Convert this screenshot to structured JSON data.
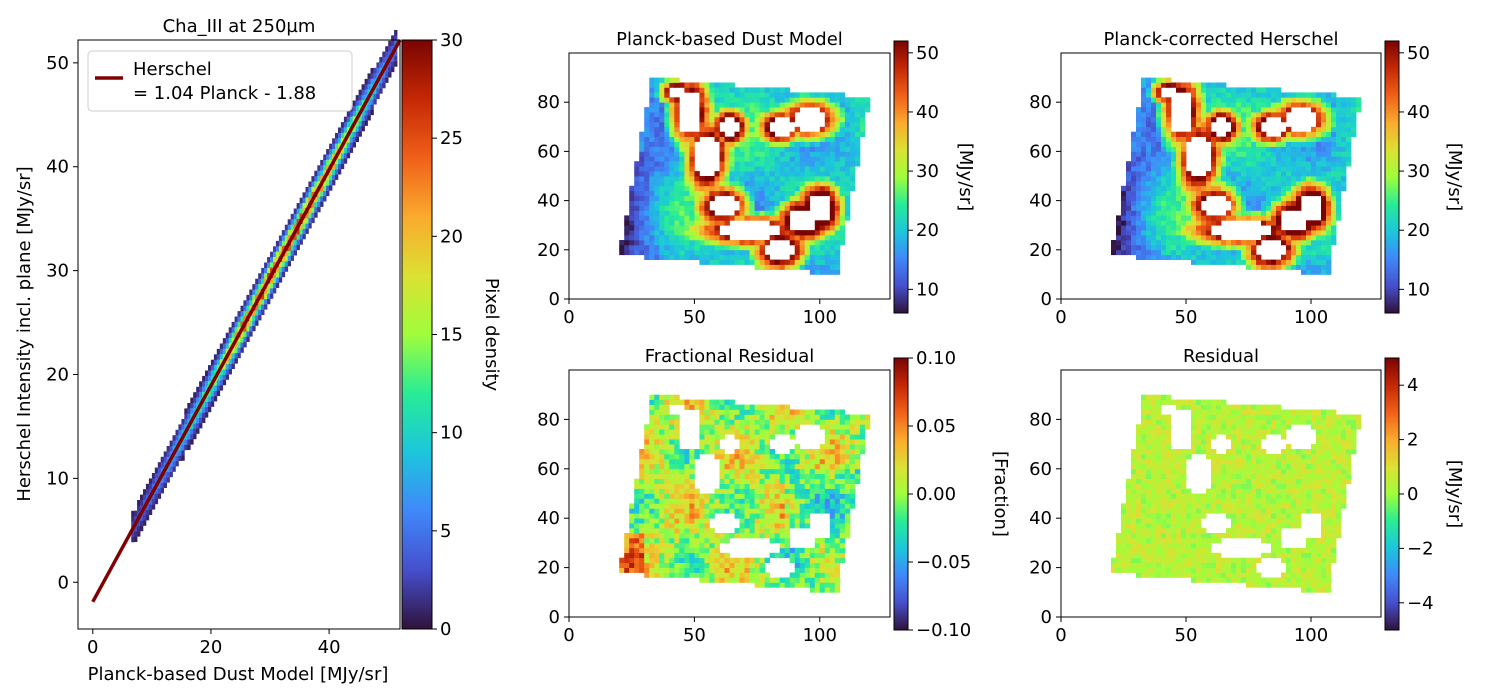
{
  "chart_data": [
    {
      "type": "heatmap",
      "panel": "density_scatter",
      "title": "Cha_III at 250µm",
      "xlabel": "Planck-based Dust Model [MJy/sr]",
      "ylabel": "Herschel Intensity incl. plane [MJy/sr]",
      "xlim": [
        -2.5,
        52
      ],
      "ylim": [
        -4.5,
        52.2
      ],
      "xticks": [
        0,
        20,
        40
      ],
      "yticks": [
        0,
        10,
        20,
        30,
        40,
        50
      ],
      "fit_line": {
        "slope": 1.04,
        "intercept": -1.88,
        "x_range": [
          0,
          52
        ]
      },
      "legend": {
        "position": "top-left",
        "entries": [
          "Herschel",
          "= 1.04 Planck - 1.88"
        ]
      },
      "colorbar": {
        "label": "Pixel density",
        "range": [
          0,
          30
        ],
        "ticks": [
          0,
          5,
          10,
          15,
          20,
          25,
          30
        ],
        "colormap": "turbo"
      },
      "density_profile": [
        {
          "x": 7,
          "peak_density": 3
        },
        {
          "x": 10,
          "peak_density": 5
        },
        {
          "x": 15,
          "peak_density": 9
        },
        {
          "x": 20,
          "peak_density": 14
        },
        {
          "x": 25,
          "peak_density": 24
        },
        {
          "x": 30,
          "peak_density": 27
        },
        {
          "x": 35,
          "peak_density": 26
        },
        {
          "x": 40,
          "peak_density": 22
        },
        {
          "x": 45,
          "peak_density": 14
        },
        {
          "x": 50,
          "peak_density": 5
        }
      ],
      "grid": false
    },
    {
      "type": "heatmap",
      "panel": "map",
      "title": "Planck-based Dust Model",
      "xticks": [
        0,
        50,
        100
      ],
      "yticks": [
        0,
        20,
        40,
        60,
        80
      ],
      "xlim": [
        0,
        128
      ],
      "ylim": [
        0,
        100
      ],
      "colorbar": {
        "label": "[MJy/sr]",
        "range": [
          6,
          52
        ],
        "ticks": [
          10,
          20,
          30,
          40,
          50
        ],
        "colormap": "turbo"
      },
      "grid": false
    },
    {
      "type": "heatmap",
      "panel": "map",
      "title": "Planck-corrected Herschel",
      "xticks": [
        0,
        50,
        100
      ],
      "yticks": [
        0,
        20,
        40,
        60,
        80
      ],
      "xlim": [
        0,
        128
      ],
      "ylim": [
        0,
        100
      ],
      "colorbar": {
        "label": "[MJy/sr]",
        "range": [
          6,
          52
        ],
        "ticks": [
          10,
          20,
          30,
          40,
          50
        ],
        "colormap": "turbo"
      },
      "grid": false
    },
    {
      "type": "heatmap",
      "panel": "map",
      "title": "Fractional Residual",
      "xticks": [
        0,
        50,
        100
      ],
      "yticks": [
        0,
        20,
        40,
        60,
        80
      ],
      "xlim": [
        0,
        128
      ],
      "ylim": [
        0,
        100
      ],
      "colorbar": {
        "label": "[Fraction]",
        "range": [
          -0.1,
          0.1
        ],
        "ticks": [
          -0.1,
          -0.05,
          0.0,
          0.05,
          0.1
        ],
        "tick_labels": [
          "−0.10",
          "−0.05",
          "0.00",
          "0.05",
          "0.10"
        ],
        "colormap": "turbo"
      },
      "grid": false
    },
    {
      "type": "heatmap",
      "panel": "map",
      "title": "Residual",
      "xticks": [
        0,
        50,
        100
      ],
      "yticks": [
        0,
        20,
        40,
        60,
        80
      ],
      "xlim": [
        0,
        128
      ],
      "ylim": [
        0,
        100
      ],
      "colorbar": {
        "label": "[MJy/sr]",
        "range": [
          -5,
          5
        ],
        "ticks": [
          -4,
          -2,
          0,
          2,
          4
        ],
        "tick_labels": [
          "−4",
          "−2",
          "0",
          "2",
          "4"
        ],
        "colormap": "turbo"
      },
      "grid": false
    }
  ],
  "map_shape": {
    "corners": [
      [
        20,
        18
      ],
      [
        33,
        90
      ],
      [
        120,
        82
      ],
      [
        107,
        10
      ]
    ],
    "holes": [
      {
        "center": [
          48,
          76
        ],
        "radius": [
          5,
          9
        ]
      },
      {
        "center": [
          55,
          58
        ],
        "radius": [
          5,
          9
        ]
      },
      {
        "center": [
          62,
          38
        ],
        "radius": [
          6,
          5
        ]
      },
      {
        "center": [
          72,
          28
        ],
        "radius": [
          12,
          4
        ]
      },
      {
        "center": [
          84,
          20
        ],
        "radius": [
          6,
          5
        ]
      },
      {
        "center": [
          93,
          32
        ],
        "radius": [
          6,
          5
        ]
      },
      {
        "center": [
          100,
          37
        ],
        "radius": [
          5,
          6
        ]
      },
      {
        "center": [
          96,
          73
        ],
        "radius": [
          7,
          5
        ]
      },
      {
        "center": [
          85,
          70
        ],
        "radius": [
          5,
          4
        ]
      },
      {
        "center": [
          64,
          70
        ],
        "radius": [
          4,
          4
        ]
      },
      {
        "center": [
          43,
          84
        ],
        "radius": [
          4,
          3
        ]
      }
    ]
  },
  "colors": {
    "fit_line": "#7f0000",
    "axis": "#000000"
  }
}
